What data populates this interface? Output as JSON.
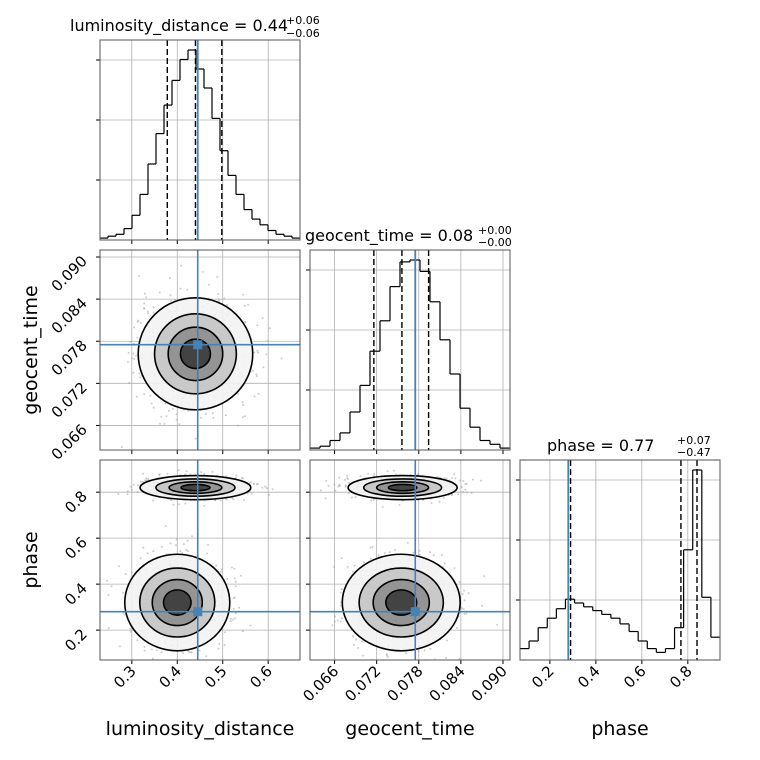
{
  "chart_data": {
    "type": "corner",
    "parameters": [
      "luminosity_distance",
      "geocent_time",
      "phase"
    ],
    "titles": [
      {
        "label": "luminosity_distance = 0.44",
        "sup": "+0.06",
        "sub": "−0.06"
      },
      {
        "label": "geocent_time = 0.08",
        "sup": "+0.00",
        "sub": "−0.00"
      },
      {
        "label": "phase = 0.77",
        "sup": "+0.07",
        "sub": "−0.47"
      }
    ],
    "axis_ranges": {
      "luminosity_distance": [
        0.23,
        0.67
      ],
      "geocent_time": [
        0.0625,
        0.091
      ],
      "phase": [
        0.07,
        0.94
      ]
    },
    "ticks": {
      "luminosity_distance": [
        "0.3",
        "0.4",
        "0.5",
        "0.6"
      ],
      "geocent_time": [
        "0.066",
        "0.072",
        "0.078",
        "0.084",
        "0.090"
      ],
      "phase": [
        "0.2",
        "0.4",
        "0.6",
        "0.8"
      ]
    },
    "tick_values": {
      "luminosity_distance": [
        0.3,
        0.4,
        0.5,
        0.6
      ],
      "geocent_time": [
        0.066,
        0.072,
        0.078,
        0.084,
        0.09
      ],
      "phase": [
        0.2,
        0.4,
        0.6,
        0.8
      ]
    },
    "truths": {
      "luminosity_distance": 0.445,
      "geocent_time": 0.0775,
      "phase": 0.28
    },
    "quantiles": {
      "luminosity_distance": [
        0.378,
        0.44,
        0.498
      ],
      "geocent_time": [
        0.0716,
        0.0756,
        0.0794
      ],
      "phase": [
        0.29,
        0.77,
        0.84
      ]
    },
    "histograms": {
      "luminosity_distance": {
        "range": [
          0.23,
          0.67
        ],
        "values": [
          1,
          2,
          3,
          6,
          13,
          24,
          40,
          56,
          71,
          84,
          95,
          100,
          90,
          80,
          64,
          47,
          34,
          24,
          16,
          11,
          8,
          5,
          3,
          2,
          1
        ]
      },
      "geocent_time": {
        "range": [
          0.0625,
          0.091
        ],
        "values": [
          1,
          2,
          5,
          9,
          20,
          34,
          52,
          68,
          86,
          99,
          100,
          94,
          78,
          58,
          40,
          22,
          12,
          5,
          3,
          1
        ]
      },
      "phase": {
        "range": [
          0.07,
          0.94
        ],
        "values": [
          6,
          10,
          17,
          22,
          27,
          32,
          30,
          28,
          26,
          24,
          22,
          19,
          15,
          10,
          6,
          4,
          6,
          17,
          58,
          100,
          33,
          12
        ]
      }
    },
    "x_labels": [
      "luminosity_distance",
      "geocent_time",
      "phase"
    ],
    "y_labels": [
      "geocent_time",
      "phase"
    ]
  }
}
